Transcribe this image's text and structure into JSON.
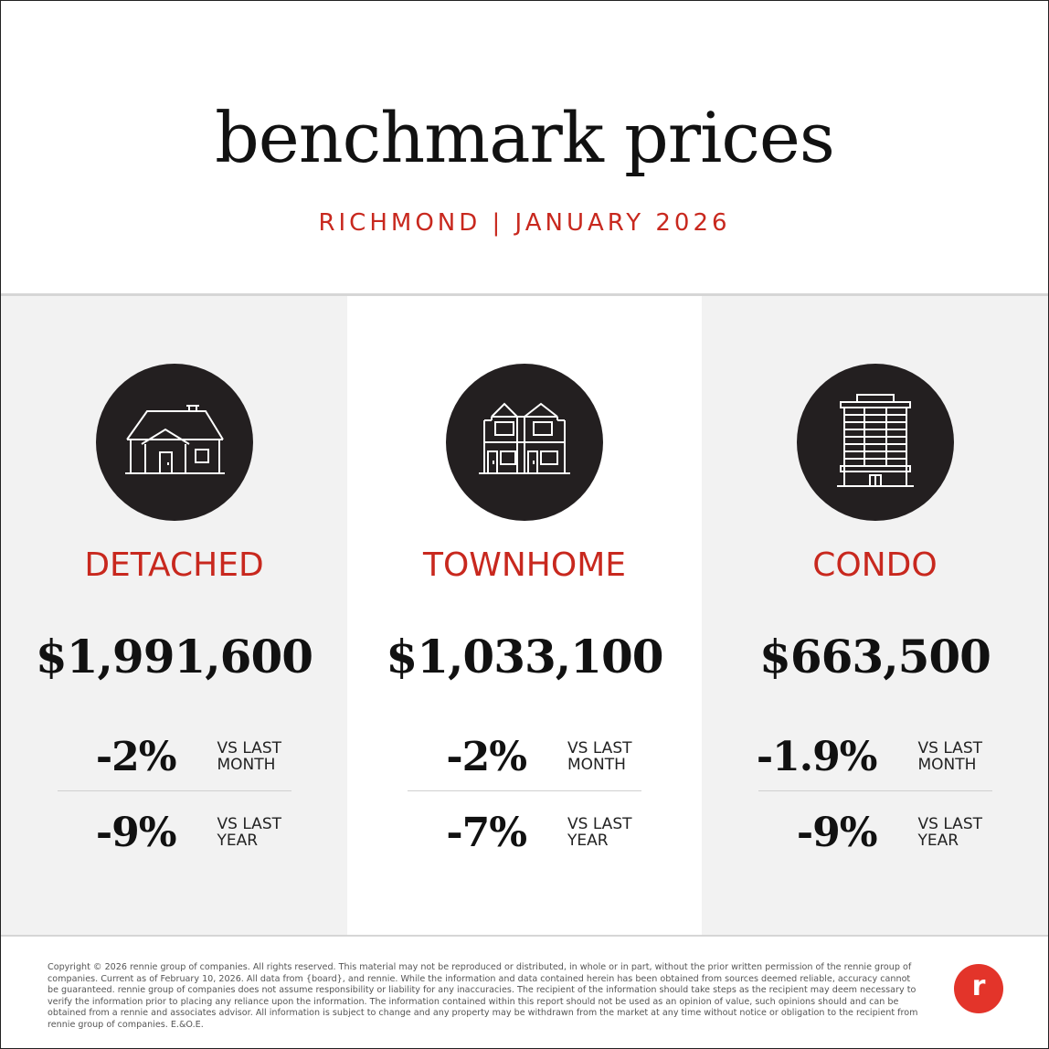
{
  "header": {
    "title": "benchmark prices",
    "subtitle": "RICHMOND | JANUARY 2026"
  },
  "columns": [
    {
      "icon": "house-icon",
      "type": "DETACHED",
      "price": "$1,991,600",
      "month_change": "-2%",
      "month_label_line1": "VS LAST",
      "month_label_line2": "MONTH",
      "year_change": "-9%",
      "year_label_line1": "VS LAST",
      "year_label_line2": "YEAR"
    },
    {
      "icon": "townhome-icon",
      "type": "TOWNHOME",
      "price": "$1,033,100",
      "month_change": "-2%",
      "month_label_line1": "VS LAST",
      "month_label_line2": "MONTH",
      "year_change": "-7%",
      "year_label_line1": "VS LAST",
      "year_label_line2": "YEAR"
    },
    {
      "icon": "condo-building-icon",
      "type": "CONDO",
      "price": "$663,500",
      "month_change": "-1.9%",
      "month_label_line1": "VS LAST",
      "month_label_line2": "MONTH",
      "year_change": "-9%",
      "year_label_line1": "VS LAST",
      "year_label_line2": "YEAR"
    }
  ],
  "footer": {
    "disclaimer": "Copyright © 2026 rennie group of companies. All rights reserved. This material may not be reproduced or distributed, in whole or in part, without the prior written permission of the rennie group of companies. Current as of February 10, 2026. All data from {board}, and rennie. While the information and data contained herein has been obtained from sources deemed reliable, accuracy cannot be guaranteed. rennie group of companies does not assume responsibility or liability for any inaccuracies. The recipient of the information should take steps as the recipient may deem necessary to verify the information prior to placing any reliance upon the information. The information contained within this report should not be used as an opinion of value, such opinions should and can be obtained from a rennie and associates advisor. All information is subject to change and any property may be withdrawn from the market at any time without notice or obligation to the recipient from rennie group of companies. E.&O.E.",
    "logo_icon": "rennie-logo-icon",
    "logo_letter": "r"
  },
  "colors": {
    "accent_red": "#c8281e",
    "circle_dark": "#231f20",
    "panel_grey": "#f2f2f2"
  }
}
